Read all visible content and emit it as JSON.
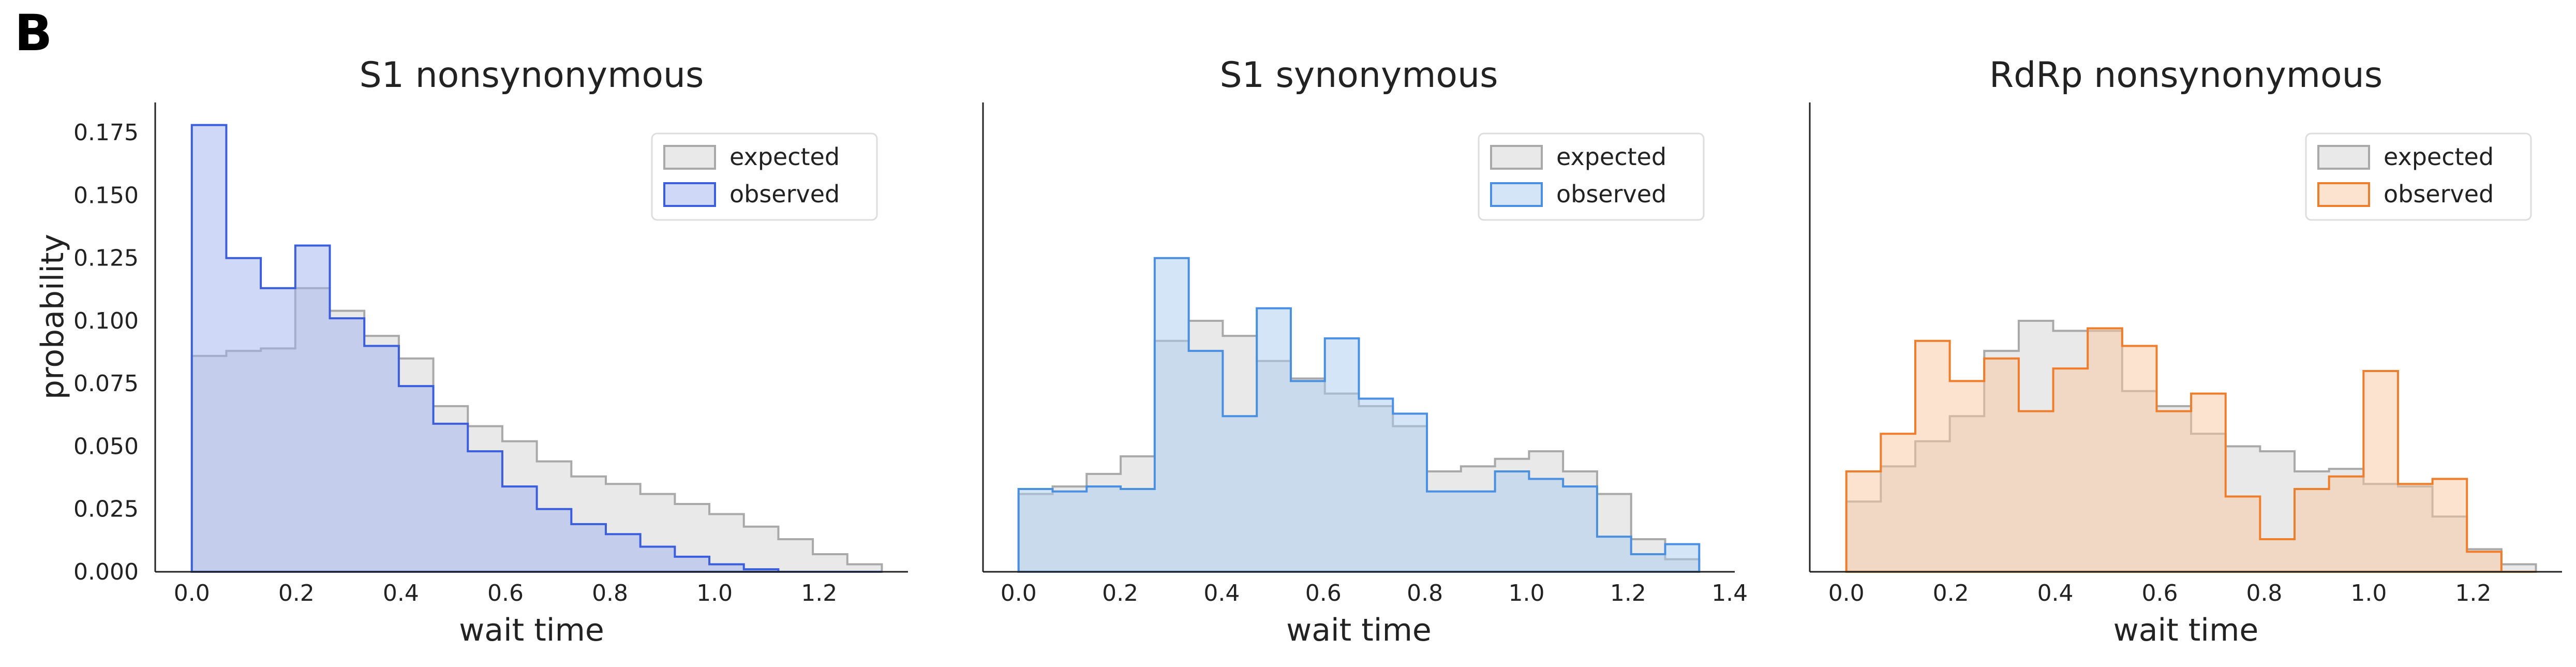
{
  "figure": {
    "panel_letter": "B",
    "ylabel": "probability",
    "xlabel": "wait time"
  },
  "chart_data": [
    {
      "type": "histogram",
      "title": "S1 nonsynonymous",
      "xlabel": "wait time",
      "ylabel": "probability",
      "bin_edges": [
        0.0,
        0.066,
        0.132,
        0.198,
        0.264,
        0.33,
        0.396,
        0.462,
        0.528,
        0.594,
        0.66,
        0.726,
        0.792,
        0.858,
        0.924,
        0.99,
        1.056,
        1.122,
        1.188,
        1.254,
        1.32
      ],
      "series": [
        {
          "name": "expected",
          "values": [
            0.086,
            0.088,
            0.089,
            0.113,
            0.104,
            0.094,
            0.085,
            0.066,
            0.058,
            0.052,
            0.044,
            0.038,
            0.035,
            0.031,
            0.027,
            0.023,
            0.018,
            0.013,
            0.007,
            0.003
          ]
        },
        {
          "name": "observed",
          "values": [
            0.178,
            0.125,
            0.113,
            0.13,
            0.101,
            0.09,
            0.074,
            0.059,
            0.048,
            0.034,
            0.025,
            0.019,
            0.015,
            0.01,
            0.006,
            0.003,
            0.001,
            0.0,
            0.0,
            0.0
          ]
        }
      ],
      "colors": {
        "expected": "#a9a9a9",
        "expected_fill": "#e9e9e9",
        "observed": "#3b5fdc",
        "observed_fill": "#9fb1ee"
      },
      "xticks": [
        "0.0",
        "0.2",
        "0.4",
        "0.6",
        "0.8",
        "1.0",
        "1.2"
      ],
      "yticks": [
        "0.000",
        "0.025",
        "0.050",
        "0.075",
        "0.100",
        "0.125",
        "0.150",
        "0.175"
      ],
      "xlim": [
        -0.07,
        1.37
      ],
      "ylim": [
        0,
        0.187
      ],
      "legend_position": "top-right"
    },
    {
      "type": "histogram",
      "title": "S1 synonymous",
      "xlabel": "wait time",
      "bin_edges": [
        0.0,
        0.067,
        0.134,
        0.201,
        0.268,
        0.335,
        0.402,
        0.469,
        0.536,
        0.603,
        0.67,
        0.737,
        0.804,
        0.871,
        0.938,
        1.005,
        1.072,
        1.139,
        1.206,
        1.273,
        1.34
      ],
      "series": [
        {
          "name": "expected",
          "values": [
            0.031,
            0.034,
            0.039,
            0.046,
            0.092,
            0.1,
            0.094,
            0.084,
            0.077,
            0.071,
            0.066,
            0.058,
            0.04,
            0.042,
            0.045,
            0.048,
            0.04,
            0.031,
            0.013,
            0.005
          ]
        },
        {
          "name": "observed",
          "values": [
            0.033,
            0.032,
            0.034,
            0.033,
            0.125,
            0.088,
            0.062,
            0.105,
            0.076,
            0.093,
            0.069,
            0.063,
            0.032,
            0.032,
            0.04,
            0.037,
            0.034,
            0.014,
            0.007,
            0.011
          ]
        }
      ],
      "colors": {
        "expected": "#a9a9a9",
        "expected_fill": "#e9e9e9",
        "observed": "#4a8fe0",
        "observed_fill": "#a9cbf0"
      },
      "xticks": [
        "0.0",
        "0.2",
        "0.4",
        "0.6",
        "0.8",
        "1.0",
        "1.2",
        "1.4"
      ],
      "xlim": [
        -0.07,
        1.41
      ],
      "ylim": [
        0,
        0.187
      ],
      "legend_position": "top-right"
    },
    {
      "type": "histogram",
      "title": "RdRp nonsynonymous",
      "xlabel": "wait time",
      "bin_edges": [
        0.0,
        0.066,
        0.132,
        0.198,
        0.264,
        0.33,
        0.396,
        0.462,
        0.528,
        0.594,
        0.66,
        0.726,
        0.792,
        0.858,
        0.924,
        0.99,
        1.056,
        1.122,
        1.188,
        1.254,
        1.32
      ],
      "series": [
        {
          "name": "expected",
          "values": [
            0.028,
            0.042,
            0.052,
            0.062,
            0.088,
            0.1,
            0.096,
            0.096,
            0.072,
            0.066,
            0.055,
            0.05,
            0.048,
            0.04,
            0.041,
            0.035,
            0.034,
            0.022,
            0.009,
            0.003
          ]
        },
        {
          "name": "observed",
          "values": [
            0.04,
            0.055,
            0.092,
            0.076,
            0.085,
            0.064,
            0.081,
            0.097,
            0.09,
            0.064,
            0.071,
            0.03,
            0.013,
            0.033,
            0.038,
            0.08,
            0.035,
            0.037,
            0.008,
            0.0
          ]
        }
      ],
      "colors": {
        "expected": "#a9a9a9",
        "expected_fill": "#e9e9e9",
        "observed": "#ef7e2c",
        "observed_fill": "#f9c7a0"
      },
      "xticks": [
        "0.0",
        "0.2",
        "0.4",
        "0.6",
        "0.8",
        "1.0",
        "1.2"
      ],
      "xlim": [
        -0.07,
        1.37
      ],
      "ylim": [
        0,
        0.187
      ],
      "legend_position": "top-right"
    }
  ]
}
